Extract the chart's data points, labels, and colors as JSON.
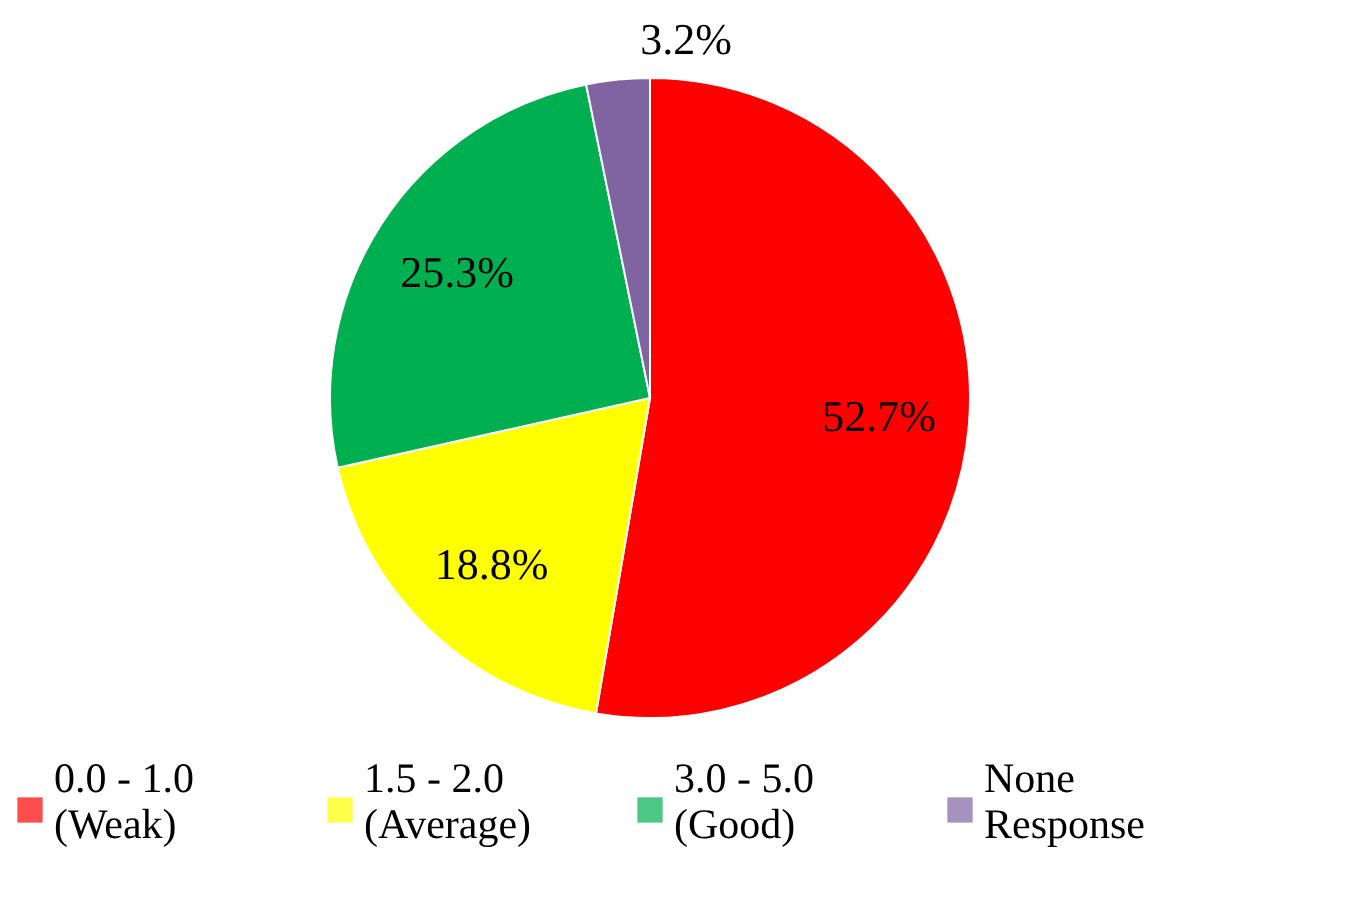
{
  "chart_data": {
    "type": "pie",
    "categories": [
      "0.0 - 1.0\n(Weak)",
      "1.5 - 2.0\n(Average)",
      "3.0 - 5.0\n(Good)",
      "None\nResponse"
    ],
    "values": [
      52.7,
      18.8,
      25.3,
      3.2
    ],
    "colors": [
      "#ff0000",
      "#ffff00",
      "#00b050",
      "#8064a2"
    ],
    "value_labels": [
      "52.7%",
      "18.8%",
      "25.3%",
      "3.2%"
    ],
    "legend": "bottom"
  }
}
